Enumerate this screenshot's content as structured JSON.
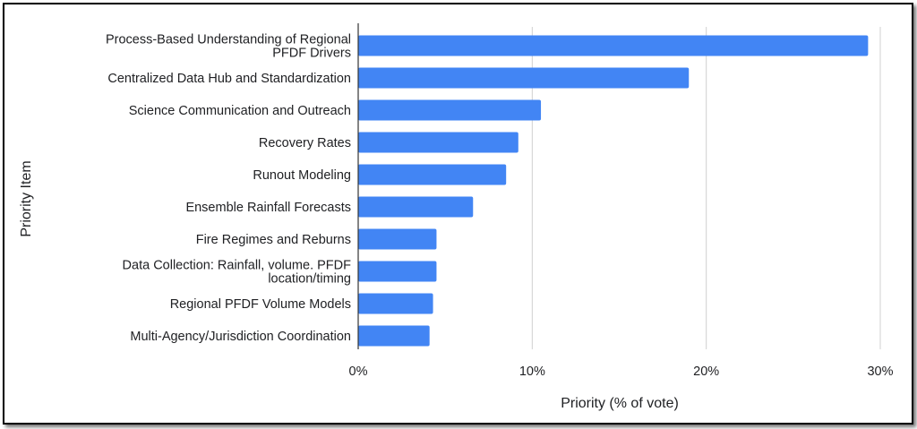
{
  "chart_data": {
    "type": "bar",
    "orientation": "horizontal",
    "title": "",
    "xlabel": "Priority (% of vote)",
    "ylabel": "Priority Item",
    "categories": [
      [
        "Process-Based Understanding of Regional",
        "PFDF Drivers"
      ],
      [
        "Centralized Data Hub and Standardization"
      ],
      [
        "Science Communication and Outreach"
      ],
      [
        "Recovery Rates"
      ],
      [
        "Runout Modeling"
      ],
      [
        "Ensemble Rainfall Forecasts"
      ],
      [
        "Fire Regimes and Reburns"
      ],
      [
        "Data Collection: Rainfall, volume. PFDF",
        "location/timing"
      ],
      [
        "Regional PFDF Volume Models"
      ],
      [
        "Multi-Agency/Jurisdiction Coordination"
      ]
    ],
    "values": [
      29.3,
      19.0,
      10.5,
      9.2,
      8.5,
      6.6,
      4.5,
      4.5,
      4.3,
      4.1
    ],
    "xlim": [
      0,
      30
    ],
    "xticks": [
      0,
      10,
      20,
      30
    ],
    "xtick_labels": [
      "0%",
      "10%",
      "20%",
      "30%"
    ],
    "grid": true,
    "bar_color": "#4285f4",
    "grid_color": "#d0d0d0"
  }
}
